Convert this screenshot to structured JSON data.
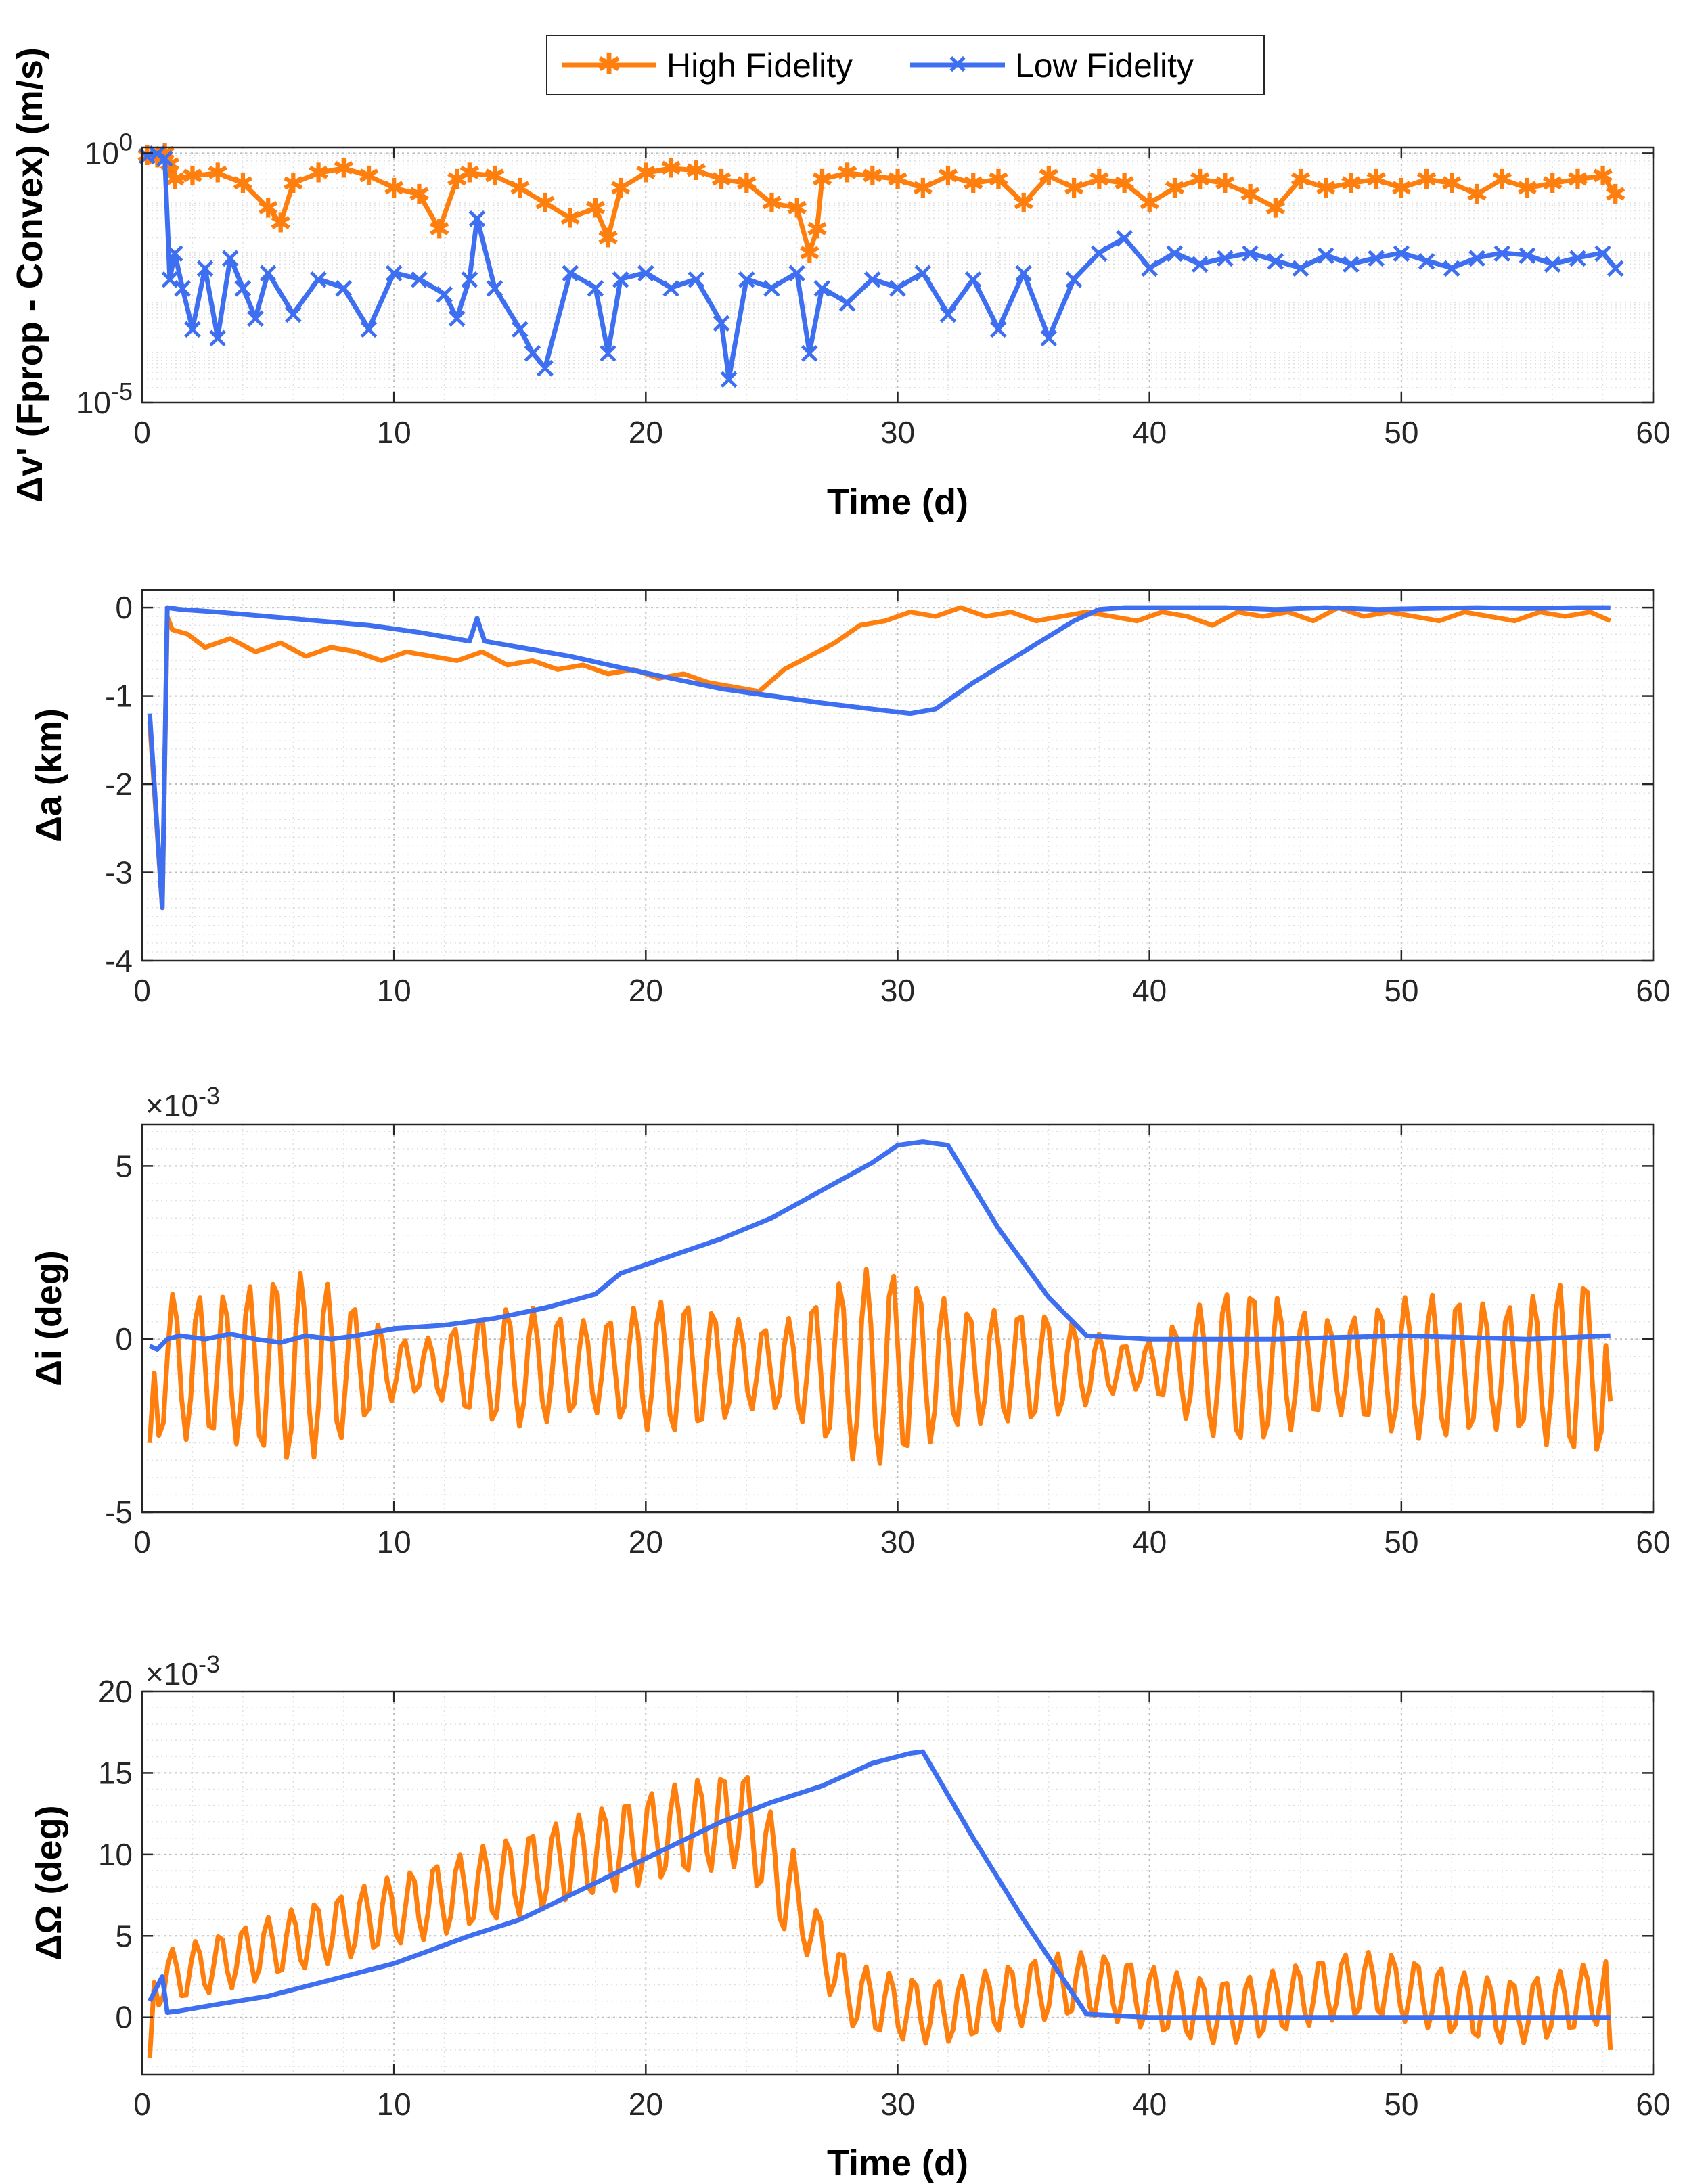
{
  "colors": {
    "high": "#ff7f0e",
    "low": "#3d6ff0",
    "axis": "#262626",
    "grid": "#c8c8c8"
  },
  "legend": {
    "items": [
      {
        "label": "High Fidelity",
        "series": "high"
      },
      {
        "label": "Low Fidelity",
        "series": "low"
      }
    ]
  },
  "chart_data": [
    {
      "id": "dv",
      "type": "line",
      "yscale": "log",
      "ylabel": "Δv' (Fprop - Convex) (m/s)",
      "xlabel": "Time (d)",
      "xlim": [
        0,
        60
      ],
      "ylim": [
        1e-05,
        1.3
      ],
      "xticks": [
        0,
        10,
        20,
        30,
        40,
        50,
        60
      ],
      "yticks": [
        {
          "value": 1e-05,
          "base": "10",
          "exp": "-5"
        },
        {
          "value": 1,
          "base": "10",
          "exp": "0"
        }
      ],
      "grid": true,
      "markers": true,
      "series": [
        {
          "name": "High Fidelity",
          "key": "high",
          "x": [
            0.2,
            0.6,
            0.9,
            1.1,
            1.3,
            2,
            3,
            4,
            5,
            5.5,
            6,
            7,
            8,
            9,
            10,
            11,
            11.8,
            12.5,
            13,
            14,
            15,
            16,
            17,
            18,
            18.5,
            19,
            20,
            21,
            22,
            23,
            24,
            25,
            26,
            26.5,
            26.8,
            27,
            28,
            29,
            30,
            31,
            32,
            33,
            34,
            35,
            36,
            37,
            38,
            39,
            40,
            41,
            42,
            43,
            44,
            45,
            46,
            47,
            48,
            49,
            50,
            51,
            52,
            53,
            54,
            55,
            56,
            57,
            58,
            58.5
          ],
          "y": [
            0.9,
            0.8,
            1.0,
            0.6,
            0.3,
            0.35,
            0.4,
            0.25,
            0.08,
            0.04,
            0.25,
            0.4,
            0.5,
            0.35,
            0.2,
            0.15,
            0.03,
            0.3,
            0.4,
            0.35,
            0.2,
            0.1,
            0.05,
            0.08,
            0.02,
            0.2,
            0.4,
            0.5,
            0.45,
            0.3,
            0.25,
            0.1,
            0.08,
            0.01,
            0.03,
            0.3,
            0.4,
            0.35,
            0.3,
            0.2,
            0.35,
            0.25,
            0.3,
            0.1,
            0.35,
            0.2,
            0.3,
            0.25,
            0.1,
            0.2,
            0.3,
            0.25,
            0.15,
            0.08,
            0.3,
            0.2,
            0.25,
            0.3,
            0.2,
            0.3,
            0.25,
            0.15,
            0.3,
            0.2,
            0.25,
            0.3,
            0.35,
            0.15
          ]
        },
        {
          "name": "Low Fidelity",
          "key": "low",
          "x": [
            0.2,
            0.6,
            0.9,
            1.1,
            1.3,
            1.6,
            2,
            2.5,
            3,
            3.5,
            4,
            4.5,
            5,
            6,
            7,
            8,
            9,
            10,
            11,
            12,
            12.5,
            13,
            13.3,
            14,
            15,
            15.5,
            16,
            17,
            18,
            18.5,
            19,
            20,
            21,
            22,
            23,
            23.3,
            24,
            25,
            26,
            26.5,
            27,
            28,
            29,
            30,
            31,
            32,
            33,
            34,
            35,
            36,
            37,
            38,
            39,
            40,
            41,
            42,
            43,
            44,
            45,
            46,
            47,
            48,
            49,
            50,
            51,
            52,
            53,
            54,
            55,
            56,
            57,
            58,
            58.5
          ],
          "y": [
            0.9,
            1.0,
            0.8,
            0.003,
            0.01,
            0.002,
            0.0003,
            0.005,
            0.0002,
            0.008,
            0.002,
            0.0005,
            0.004,
            0.0006,
            0.003,
            0.002,
            0.0003,
            0.004,
            0.003,
            0.0015,
            0.0005,
            0.003,
            0.05,
            0.002,
            0.0003,
            0.0001,
            5e-05,
            0.004,
            0.002,
            0.0001,
            0.003,
            0.004,
            0.002,
            0.003,
            0.0004,
            3e-05,
            0.003,
            0.002,
            0.004,
            0.0001,
            0.002,
            0.001,
            0.003,
            0.002,
            0.004,
            0.0006,
            0.003,
            0.0003,
            0.004,
            0.0002,
            0.003,
            0.01,
            0.02,
            0.005,
            0.01,
            0.006,
            0.008,
            0.01,
            0.007,
            0.005,
            0.009,
            0.006,
            0.008,
            0.01,
            0.007,
            0.005,
            0.008,
            0.01,
            0.009,
            0.006,
            0.008,
            0.01,
            0.005
          ]
        }
      ]
    },
    {
      "id": "da",
      "type": "line",
      "yscale": "linear",
      "ylabel": "Δa (km)",
      "xlabel": "",
      "xlim": [
        0,
        60
      ],
      "ylim": [
        -4,
        0.2
      ],
      "xticks": [
        0,
        10,
        20,
        30,
        40,
        50,
        60
      ],
      "yticks": [
        {
          "value": 0,
          "label": "0"
        },
        {
          "value": -1,
          "label": "-1"
        },
        {
          "value": -2,
          "label": "-2"
        },
        {
          "value": -3,
          "label": "-3"
        },
        {
          "value": -4,
          "label": "-4"
        }
      ],
      "grid": true,
      "series": [
        {
          "name": "High Fidelity",
          "key": "high",
          "x": [
            0.3,
            0.8,
            1.0,
            1.2,
            1.8,
            2.5,
            3.5,
            4.5,
            5.5,
            6.5,
            7.5,
            8.5,
            9.5,
            10.5,
            11.5,
            12.5,
            13.5,
            14.5,
            15.5,
            16.5,
            17.5,
            18.5,
            19.5,
            20.5,
            21.5,
            22.5,
            23.5,
            24.5,
            25.5,
            26.5,
            27.5,
            28.5,
            29.5,
            30.5,
            31.5,
            32.5,
            33.5,
            34.5,
            35.5,
            36.5,
            37.5,
            38.5,
            39.5,
            40.5,
            41.5,
            42.5,
            43.5,
            44.5,
            45.5,
            46.5,
            47.5,
            48.5,
            49.5,
            50.5,
            51.5,
            52.5,
            53.5,
            54.5,
            55.5,
            56.5,
            57.5,
            58.3
          ],
          "y": [
            -1.3,
            -3.4,
            -0.1,
            -0.25,
            -0.3,
            -0.45,
            -0.35,
            -0.5,
            -0.4,
            -0.55,
            -0.45,
            -0.5,
            -0.6,
            -0.5,
            -0.55,
            -0.6,
            -0.5,
            -0.65,
            -0.6,
            -0.7,
            -0.65,
            -0.75,
            -0.7,
            -0.8,
            -0.75,
            -0.85,
            -0.9,
            -0.95,
            -0.7,
            -0.55,
            -0.4,
            -0.2,
            -0.15,
            -0.05,
            -0.1,
            0.0,
            -0.1,
            -0.05,
            -0.15,
            -0.1,
            -0.05,
            -0.1,
            -0.15,
            -0.05,
            -0.1,
            -0.2,
            -0.05,
            -0.1,
            -0.05,
            -0.15,
            0.0,
            -0.1,
            -0.05,
            -0.1,
            -0.15,
            -0.05,
            -0.1,
            -0.15,
            -0.05,
            -0.1,
            -0.05,
            -0.15
          ]
        },
        {
          "name": "Low Fidelity",
          "key": "low",
          "x": [
            0.3,
            0.8,
            1.0,
            1.5,
            3,
            5,
            7,
            9,
            11,
            13,
            13.3,
            13.6,
            15,
            17,
            19,
            21,
            23,
            25,
            27,
            29,
            30.5,
            31.5,
            33,
            35,
            37,
            38,
            39,
            41,
            43,
            45,
            47,
            49,
            51,
            53,
            55,
            57,
            58.3
          ],
          "y": [
            -1.2,
            -3.4,
            0.0,
            -0.02,
            -0.05,
            -0.1,
            -0.15,
            -0.2,
            -0.28,
            -0.38,
            -0.12,
            -0.38,
            -0.45,
            -0.55,
            -0.68,
            -0.8,
            -0.92,
            -1.0,
            -1.08,
            -1.15,
            -1.2,
            -1.15,
            -0.85,
            -0.5,
            -0.15,
            -0.02,
            0.0,
            0.0,
            0.0,
            -0.02,
            0.0,
            -0.02,
            -0.01,
            0.0,
            -0.01,
            0.0,
            0.0
          ]
        }
      ]
    },
    {
      "id": "di",
      "type": "line",
      "yscale": "linear",
      "ylabel": "Δi (deg)",
      "xlabel": "",
      "exponent": "-3",
      "xlim": [
        0,
        60
      ],
      "ylim": [
        -5,
        6.2
      ],
      "xticks": [
        0,
        10,
        20,
        30,
        40,
        50,
        60
      ],
      "yticks": [
        {
          "value": 5,
          "label": "5"
        },
        {
          "value": 0,
          "label": "0"
        },
        {
          "value": -5,
          "label": "-5"
        }
      ],
      "grid": true,
      "series": [
        {
          "name": "High Fidelity",
          "key": "high",
          "oscillation": true,
          "x": [
            0.3,
            58.3
          ],
          "y": [
            -3.0,
            -1.8
          ]
        },
        {
          "name": "Low Fidelity",
          "key": "low",
          "x": [
            0.3,
            0.6,
            1,
            1.5,
            2.5,
            3.5,
            4.5,
            5.5,
            6.5,
            7.5,
            8.5,
            10,
            12,
            14,
            16,
            18,
            19,
            21,
            23,
            25,
            27,
            29,
            30,
            31,
            32,
            34,
            36,
            37.5,
            40,
            45,
            50,
            55,
            58.3
          ],
          "y": [
            -0.2,
            -0.3,
            0.0,
            0.1,
            0.0,
            0.15,
            0.0,
            -0.1,
            0.1,
            0.0,
            0.1,
            0.3,
            0.4,
            0.6,
            0.9,
            1.3,
            1.9,
            2.4,
            2.9,
            3.5,
            4.3,
            5.1,
            5.6,
            5.7,
            5.6,
            3.2,
            1.2,
            0.1,
            0.0,
            0.0,
            0.1,
            0.0,
            0.1
          ]
        }
      ]
    },
    {
      "id": "dO",
      "type": "line",
      "yscale": "linear",
      "ylabel": "ΔΩ (deg)",
      "xlabel": "Time (d)",
      "exponent": "-3",
      "xlim": [
        0,
        60
      ],
      "ylim": [
        -3.5,
        20
      ],
      "xticks": [
        0,
        10,
        20,
        30,
        40,
        50,
        60
      ],
      "yticks": [
        {
          "value": 20,
          "label": "20"
        },
        {
          "value": 15,
          "label": "15"
        },
        {
          "value": 10,
          "label": "10"
        },
        {
          "value": 5,
          "label": "5"
        },
        {
          "value": 0,
          "label": "0"
        }
      ],
      "grid": true,
      "series": [
        {
          "name": "High Fidelity",
          "key": "high",
          "oscillation": true,
          "x": [
            0.3,
            58.3
          ],
          "y": [
            -2.5,
            -2.0
          ]
        },
        {
          "name": "Low Fidelity",
          "key": "low",
          "x": [
            0.3,
            0.8,
            1.0,
            1.5,
            3,
            5,
            8,
            10,
            13,
            15,
            17,
            19,
            21,
            23,
            25,
            27,
            29,
            30.5,
            31,
            33,
            35,
            37.5,
            40,
            45,
            50,
            55,
            58.3
          ],
          "y": [
            1.0,
            2.5,
            0.3,
            0.4,
            0.8,
            1.3,
            2.5,
            3.3,
            5.0,
            6.0,
            7.5,
            9.0,
            10.5,
            12.0,
            13.2,
            14.2,
            15.6,
            16.2,
            16.3,
            11.0,
            6.0,
            0.2,
            0.0,
            0.0,
            0.0,
            0.0,
            0.0
          ]
        }
      ]
    }
  ]
}
